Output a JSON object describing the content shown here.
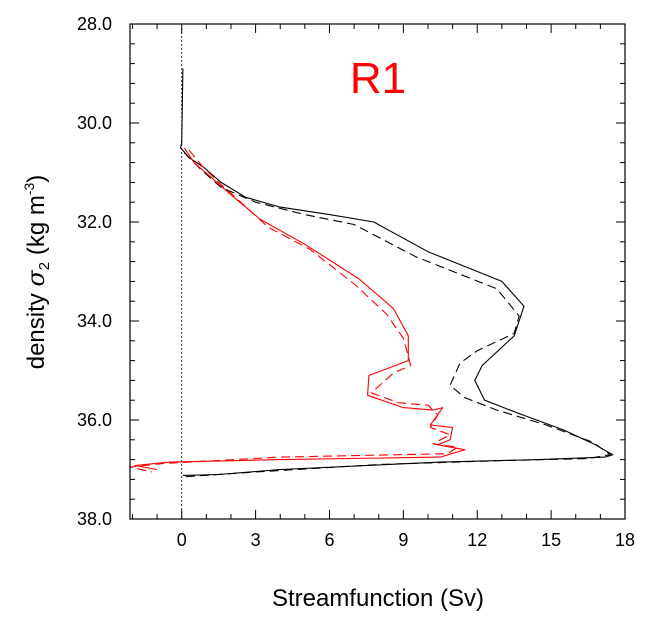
{
  "chart_data": {
    "type": "line",
    "title": "R1",
    "title_color": "#ff0000",
    "xlabel": "Streamfunction (Sv)",
    "ylabel": {
      "prefix": "density ",
      "symbol": "σ",
      "subscript": "2",
      "units_open": " (kg m",
      "superscript": "-3",
      "units_close": ")"
    },
    "xlim": [
      -2.1,
      18
    ],
    "ylim": [
      28,
      38
    ],
    "y_inverted": true,
    "xticks": [
      0,
      3,
      6,
      9,
      12,
      15,
      18
    ],
    "xtick_labels": [
      "0",
      "3",
      "6",
      "9",
      "12",
      "15",
      "18"
    ],
    "yticks": [
      28,
      30,
      32,
      34,
      36,
      38
    ],
    "ytick_labels": [
      "28.0",
      "30.0",
      "32.0",
      "34.0",
      "36.0",
      "38.0"
    ],
    "grid": false,
    "zero_line": true,
    "series": [
      {
        "color": "#000000",
        "dash": "solid",
        "points": [
          [
            0.05,
            28.9
          ],
          [
            0.0,
            30.4
          ],
          [
            -0.05,
            30.5
          ],
          [
            0.3,
            30.7
          ],
          [
            0.9,
            30.9
          ],
          [
            1.6,
            31.2
          ],
          [
            2.6,
            31.5
          ],
          [
            4.0,
            31.7
          ],
          [
            6.0,
            31.85
          ],
          [
            7.8,
            32.0
          ],
          [
            10.0,
            32.6
          ],
          [
            13.0,
            33.2
          ],
          [
            13.9,
            33.7
          ],
          [
            13.5,
            34.3
          ],
          [
            12.2,
            34.9
          ],
          [
            11.9,
            35.2
          ],
          [
            12.3,
            35.6
          ],
          [
            13.6,
            35.85
          ],
          [
            15.5,
            36.2
          ],
          [
            16.8,
            36.5
          ],
          [
            17.5,
            36.7
          ],
          [
            17.2,
            36.75
          ],
          [
            14.5,
            36.8
          ],
          [
            10.5,
            36.85
          ],
          [
            4.0,
            37.0
          ],
          [
            1.5,
            37.1
          ],
          [
            0.05,
            37.12
          ]
        ]
      },
      {
        "color": "#000000",
        "dash": "dashed",
        "points": [
          [
            0.1,
            30.6
          ],
          [
            0.8,
            30.95
          ],
          [
            1.6,
            31.3
          ],
          [
            3.0,
            31.6
          ],
          [
            5.0,
            31.85
          ],
          [
            7.0,
            32.05
          ],
          [
            9.5,
            32.7
          ],
          [
            12.8,
            33.35
          ],
          [
            13.7,
            33.9
          ],
          [
            13.5,
            34.25
          ],
          [
            12.0,
            34.6
          ],
          [
            11.3,
            34.85
          ],
          [
            10.9,
            35.3
          ],
          [
            11.5,
            35.55
          ],
          [
            12.8,
            35.8
          ],
          [
            14.8,
            36.1
          ],
          [
            16.7,
            36.45
          ],
          [
            17.4,
            36.7
          ],
          [
            16.5,
            36.78
          ],
          [
            13.0,
            36.82
          ],
          [
            8.0,
            36.9
          ],
          [
            3.0,
            37.05
          ],
          [
            0.05,
            37.15
          ]
        ]
      },
      {
        "color": "#ff0000",
        "dash": "solid",
        "points": [
          [
            0.1,
            30.5
          ],
          [
            0.5,
            30.8
          ],
          [
            1.2,
            31.1
          ],
          [
            2.0,
            31.45
          ],
          [
            3.2,
            31.95
          ],
          [
            5.0,
            32.45
          ],
          [
            7.2,
            33.15
          ],
          [
            8.6,
            33.75
          ],
          [
            9.2,
            34.3
          ],
          [
            9.2,
            34.8
          ],
          [
            7.6,
            35.1
          ],
          [
            7.55,
            35.5
          ],
          [
            9.0,
            35.75
          ],
          [
            10.2,
            35.8
          ],
          [
            10.6,
            35.75
          ],
          [
            10.1,
            36.1
          ],
          [
            11.0,
            36.15
          ],
          [
            10.9,
            36.4
          ],
          [
            10.4,
            36.5
          ],
          [
            11.5,
            36.6
          ],
          [
            10.5,
            36.75
          ],
          [
            4.0,
            36.8
          ],
          [
            -0.5,
            36.85
          ],
          [
            -1.9,
            36.92
          ],
          [
            -1.0,
            37.0
          ]
        ]
      },
      {
        "color": "#ff0000",
        "dash": "dashed",
        "points": [
          [
            0.3,
            30.55
          ],
          [
            0.8,
            30.85
          ],
          [
            1.5,
            31.2
          ],
          [
            2.4,
            31.6
          ],
          [
            3.5,
            32.1
          ],
          [
            5.2,
            32.55
          ],
          [
            7.0,
            33.25
          ],
          [
            8.3,
            33.85
          ],
          [
            9.0,
            34.35
          ],
          [
            9.3,
            34.9
          ],
          [
            8.6,
            35.05
          ],
          [
            7.7,
            35.45
          ],
          [
            8.8,
            35.65
          ],
          [
            10.0,
            35.7
          ],
          [
            10.4,
            35.9
          ],
          [
            10.1,
            36.15
          ],
          [
            10.9,
            36.3
          ],
          [
            10.2,
            36.48
          ],
          [
            11.2,
            36.55
          ],
          [
            10.8,
            36.68
          ],
          [
            4.0,
            36.75
          ],
          [
            -0.8,
            36.88
          ],
          [
            -2.1,
            36.95
          ],
          [
            -1.2,
            37.05
          ]
        ]
      }
    ]
  }
}
